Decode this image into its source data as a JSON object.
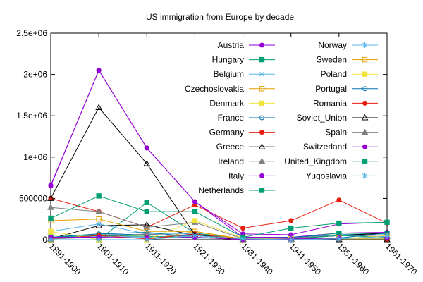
{
  "chart_data": {
    "type": "line",
    "title": "US immigration from Europe by decade",
    "xlabel": "",
    "ylabel": "",
    "categories": [
      "1891-1900",
      "1901-1910",
      "1911-1920",
      "1921-1930",
      "1931-1940",
      "1941-1950",
      "1951-1960",
      "1961-1970"
    ],
    "ylim": [
      0,
      2500000
    ],
    "yticks": [
      {
        "value": 0,
        "label": "0"
      },
      {
        "value": 500000,
        "label": "500000"
      },
      {
        "value": 1000000,
        "label": "1e+06"
      },
      {
        "value": 1500000,
        "label": "1.5e+06"
      },
      {
        "value": 2000000,
        "label": "2e+06"
      },
      {
        "value": 2500000,
        "label": "2.5e+06"
      }
    ],
    "grid": false,
    "legend_position": "top-right",
    "series": [
      {
        "name": "Austria",
        "color": "#9400d3",
        "marker": "circle",
        "values": [
          660000,
          2050000,
          1110000,
          460000,
          30000,
          30000,
          80000,
          90000
        ]
      },
      {
        "name": "Hungary",
        "color": "#009e73",
        "marker": "square",
        "values": [
          0,
          0,
          450000,
          80000,
          10000,
          20000,
          80000,
          70000
        ]
      },
      {
        "name": "Belgium",
        "color": "#56b4e9",
        "marker": "asterisk",
        "values": [
          20000,
          40000,
          30000,
          20000,
          10000,
          10000,
          20000,
          20000
        ]
      },
      {
        "name": "Czechoslovakia",
        "color": "#e69f00",
        "marker": "square-open",
        "values": [
          0,
          0,
          0,
          100000,
          10000,
          10000,
          20000,
          20000
        ]
      },
      {
        "name": "Denmark",
        "color": "#f0e442",
        "marker": "square",
        "values": [
          50000,
          60000,
          40000,
          30000,
          0,
          10000,
          10000,
          10000
        ]
      },
      {
        "name": "France",
        "color": "#0072b2",
        "marker": "circle-open",
        "values": [
          30000,
          70000,
          60000,
          50000,
          10000,
          30000,
          60000,
          70000
        ]
      },
      {
        "name": "Germany",
        "color": "#e51e10",
        "marker": "circle",
        "values": [
          500000,
          340000,
          150000,
          420000,
          140000,
          230000,
          480000,
          200000
        ]
      },
      {
        "name": "Greece",
        "color": "#000000",
        "marker": "triangle-open",
        "values": [
          10000,
          170000,
          180000,
          50000,
          10000,
          10000,
          50000,
          80000
        ]
      },
      {
        "name": "Ireland",
        "color": "#808080",
        "marker": "triangle",
        "values": [
          390000,
          340000,
          150000,
          210000,
          10000,
          20000,
          50000,
          40000
        ]
      },
      {
        "name": "Italy",
        "color": "#9400d3",
        "marker": "circle",
        "values": [
          650000,
          2050000,
          1110000,
          460000,
          70000,
          60000,
          190000,
          210000
        ]
      },
      {
        "name": "Netherlands",
        "color": "#009e73",
        "marker": "square",
        "values": [
          30000,
          50000,
          40000,
          30000,
          10000,
          10000,
          50000,
          30000
        ]
      },
      {
        "name": "Norway",
        "color": "#56b4e9",
        "marker": "asterisk",
        "values": [
          100000,
          190000,
          70000,
          70000,
          0,
          10000,
          20000,
          20000
        ]
      },
      {
        "name": "Sweden",
        "color": "#e69f00",
        "marker": "square-open",
        "values": [
          230000,
          250000,
          100000,
          100000,
          0,
          10000,
          20000,
          20000
        ]
      },
      {
        "name": "Poland",
        "color": "#f0e442",
        "marker": "square",
        "values": [
          100000,
          0,
          0,
          230000,
          20000,
          10000,
          10000,
          50000
        ]
      },
      {
        "name": "Portugal",
        "color": "#0072b2",
        "marker": "circle-open",
        "values": [
          30000,
          70000,
          90000,
          30000,
          0,
          10000,
          20000,
          80000
        ]
      },
      {
        "name": "Romania",
        "color": "#e51e10",
        "marker": "circle",
        "values": [
          10000,
          50000,
          10000,
          70000,
          0,
          0,
          0,
          0
        ]
      },
      {
        "name": "Soviet_Union",
        "color": "#000000",
        "marker": "triangle-open",
        "values": [
          500000,
          1600000,
          920000,
          60000,
          0,
          0,
          0,
          0
        ]
      },
      {
        "name": "Spain",
        "color": "#808080",
        "marker": "triangle",
        "values": [
          10000,
          30000,
          70000,
          30000,
          0,
          0,
          10000,
          40000
        ]
      },
      {
        "name": "Switzerland",
        "color": "#9400d3",
        "marker": "circle",
        "values": [
          30000,
          30000,
          20000,
          30000,
          0,
          10000,
          20000,
          20000
        ]
      },
      {
        "name": "United_Kingdom",
        "color": "#009e73",
        "marker": "square",
        "values": [
          260000,
          530000,
          340000,
          340000,
          30000,
          140000,
          200000,
          210000
        ]
      },
      {
        "name": "Yugoslavia",
        "color": "#56b4e9",
        "marker": "asterisk",
        "values": [
          0,
          0,
          0,
          50000,
          10000,
          0,
          10000,
          40000
        ]
      }
    ]
  }
}
